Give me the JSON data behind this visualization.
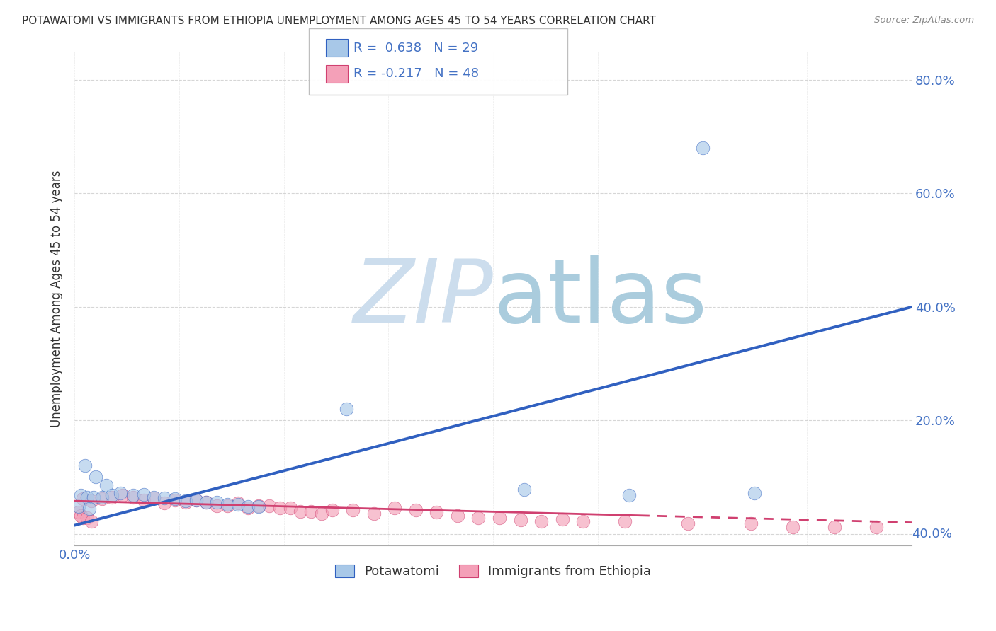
{
  "title": "POTAWATOMI VS IMMIGRANTS FROM ETHIOPIA UNEMPLOYMENT AMONG AGES 45 TO 54 YEARS CORRELATION CHART",
  "source": "Source: ZipAtlas.com",
  "ylabel": "Unemployment Among Ages 45 to 54 years",
  "legend_label1": "Potawatomi",
  "legend_label2": "Immigrants from Ethiopia",
  "r1": "0.638",
  "n1": "29",
  "r2": "-0.217",
  "n2": "48",
  "xmin": 0.0,
  "xmax": 0.4,
  "ymin": -0.02,
  "ymax": 0.85,
  "yticks": [
    0.0,
    0.2,
    0.4,
    0.6,
    0.8
  ],
  "xticks": [
    0.0,
    0.05,
    0.1,
    0.15,
    0.2,
    0.25,
    0.3,
    0.35,
    0.4
  ],
  "color_blue": "#a8c8e8",
  "color_pink": "#f4a0b8",
  "line_blue": "#3060c0",
  "line_pink": "#d04070",
  "watermark_zip_color": "#ccdded",
  "watermark_atlas_color": "#aaccdd",
  "blue_points": [
    [
      0.005,
      0.12
    ],
    [
      0.01,
      0.1
    ],
    [
      0.015,
      0.085
    ],
    [
      0.003,
      0.068
    ],
    [
      0.006,
      0.065
    ],
    [
      0.009,
      0.065
    ],
    [
      0.013,
      0.065
    ],
    [
      0.018,
      0.068
    ],
    [
      0.022,
      0.072
    ],
    [
      0.028,
      0.068
    ],
    [
      0.033,
      0.07
    ],
    [
      0.038,
      0.065
    ],
    [
      0.043,
      0.063
    ],
    [
      0.048,
      0.062
    ],
    [
      0.053,
      0.058
    ],
    [
      0.058,
      0.06
    ],
    [
      0.063,
      0.056
    ],
    [
      0.068,
      0.056
    ],
    [
      0.073,
      0.052
    ],
    [
      0.078,
      0.052
    ],
    [
      0.083,
      0.048
    ],
    [
      0.088,
      0.048
    ],
    [
      0.002,
      0.048
    ],
    [
      0.007,
      0.044
    ],
    [
      0.13,
      0.22
    ],
    [
      0.215,
      0.078
    ],
    [
      0.265,
      0.068
    ],
    [
      0.325,
      0.072
    ],
    [
      0.3,
      0.68
    ]
  ],
  "pink_points": [
    [
      0.004,
      0.062
    ],
    [
      0.008,
      0.058
    ],
    [
      0.013,
      0.062
    ],
    [
      0.018,
      0.065
    ],
    [
      0.023,
      0.068
    ],
    [
      0.028,
      0.065
    ],
    [
      0.033,
      0.06
    ],
    [
      0.038,
      0.063
    ],
    [
      0.043,
      0.055
    ],
    [
      0.048,
      0.06
    ],
    [
      0.053,
      0.056
    ],
    [
      0.058,
      0.06
    ],
    [
      0.063,
      0.056
    ],
    [
      0.068,
      0.05
    ],
    [
      0.073,
      0.05
    ],
    [
      0.078,
      0.055
    ],
    [
      0.083,
      0.046
    ],
    [
      0.088,
      0.05
    ],
    [
      0.093,
      0.05
    ],
    [
      0.098,
      0.046
    ],
    [
      0.103,
      0.046
    ],
    [
      0.108,
      0.04
    ],
    [
      0.113,
      0.04
    ],
    [
      0.118,
      0.036
    ],
    [
      0.123,
      0.042
    ],
    [
      0.133,
      0.042
    ],
    [
      0.143,
      0.036
    ],
    [
      0.153,
      0.046
    ],
    [
      0.163,
      0.042
    ],
    [
      0.173,
      0.038
    ],
    [
      0.002,
      0.038
    ],
    [
      0.003,
      0.032
    ],
    [
      0.004,
      0.028
    ],
    [
      0.006,
      0.028
    ],
    [
      0.008,
      0.022
    ],
    [
      0.183,
      0.032
    ],
    [
      0.193,
      0.028
    ],
    [
      0.203,
      0.028
    ],
    [
      0.213,
      0.024
    ],
    [
      0.223,
      0.022
    ],
    [
      0.233,
      0.026
    ],
    [
      0.243,
      0.022
    ],
    [
      0.263,
      0.022
    ],
    [
      0.293,
      0.018
    ],
    [
      0.323,
      0.018
    ],
    [
      0.343,
      0.012
    ],
    [
      0.363,
      0.012
    ],
    [
      0.383,
      0.012
    ]
  ],
  "blue_trend": [
    0.0,
    0.015,
    0.4,
    0.4
  ],
  "pink_trend": [
    0.0,
    0.058,
    0.4,
    0.02
  ],
  "background_color": "#ffffff",
  "grid_color": "#cccccc",
  "title_color": "#333333",
  "tick_label_color": "#4472c4",
  "source_color": "#888888"
}
